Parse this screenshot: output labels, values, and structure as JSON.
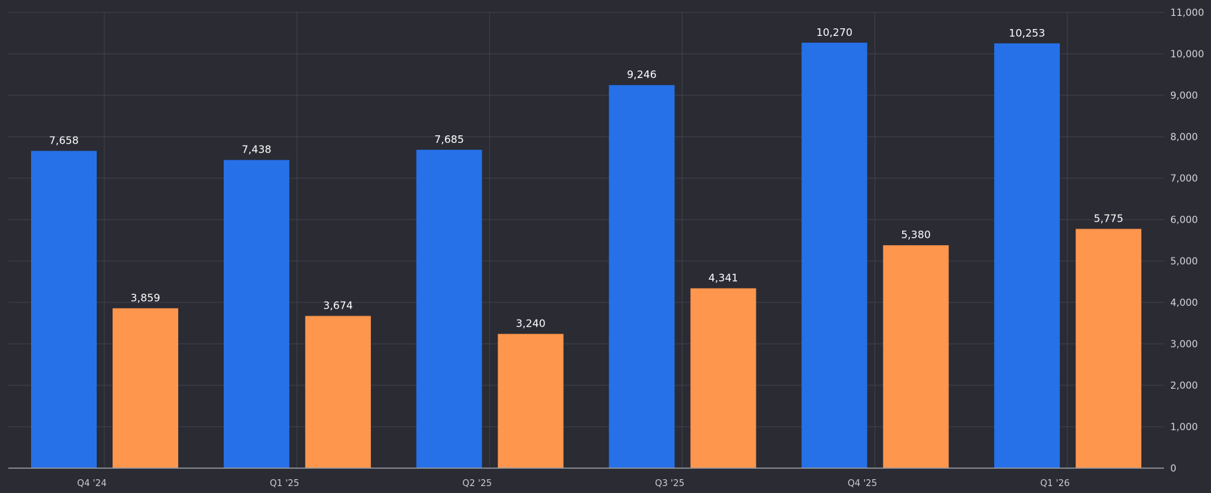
{
  "chart_data": {
    "type": "bar",
    "title": "",
    "xlabel": "",
    "ylabel": "",
    "categories": [
      "Q4 '24",
      "Q1 '25",
      "Q2 '25",
      "Q3 '25",
      "Q4 '25",
      "Q1 '26"
    ],
    "series": [
      {
        "values": [
          7658,
          7438,
          7685,
          9246,
          10270,
          10253
        ],
        "color": "#2671e8"
      },
      {
        "values": [
          3859,
          3674,
          3240,
          4341,
          5380,
          5775
        ],
        "color": "#ff964d"
      }
    ],
    "data_labels": [
      [
        "7,658",
        "7,438",
        "7,685",
        "9,246",
        "10,270",
        "10,253"
      ],
      [
        "3,859",
        "3,674",
        "3,240",
        "4,341",
        "5,380",
        "5,775"
      ]
    ],
    "ylim": [
      0,
      11000
    ],
    "yticks": [
      0,
      1000,
      2000,
      3000,
      4000,
      5000,
      6000,
      7000,
      8000,
      9000,
      10000,
      11000
    ],
    "ytick_labels": [
      "0",
      "1,000",
      "2,000",
      "3,000",
      "4,000",
      "5,000",
      "6,000",
      "7,000",
      "8,000",
      "9,000",
      "10,000",
      "11,000"
    ],
    "y_axis_side": "right",
    "grid": true,
    "legend": false
  }
}
